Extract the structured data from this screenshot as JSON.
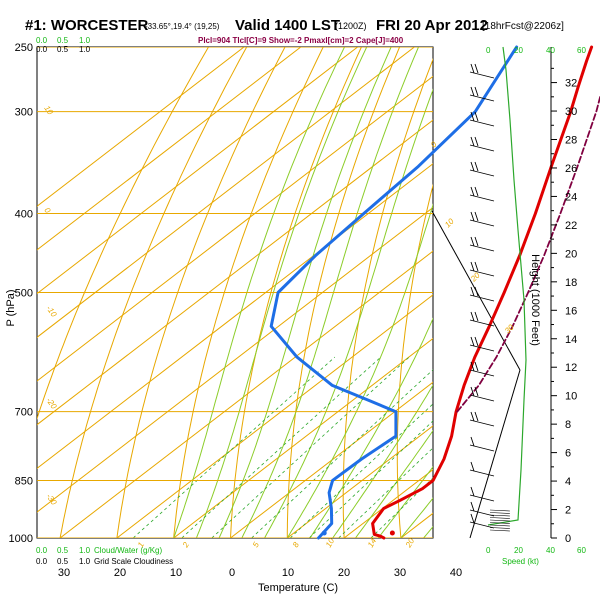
{
  "header": {
    "station": "#1: WORCESTER",
    "coords": "-33.65°,19.4° (19,25)",
    "valid": "Valid 1400 LST",
    "utc": "(1200Z)",
    "date": "FRI 20 Apr 2012",
    "forecast": "[18hrFcst@2206z]",
    "indices": "Plcl=904 Tlcl[C]=9 Show=-2 Pmaxl[cm]=2 Cape[J]=400"
  },
  "cloud_scales": {
    "top_green": [
      "0.0",
      "0.5",
      "1.0"
    ],
    "top_black": [
      "0.0",
      "0.5",
      "1.0"
    ],
    "bottom_green": [
      "0.0",
      "0.5",
      "1.0"
    ],
    "bottom_black": [
      "0.0",
      "0.5",
      "1.0"
    ],
    "bottom_green_label": "Cloud/Water (g/Kg)",
    "bottom_black_label": "Grid Scale Cloudiness"
  },
  "wind_speed_scale": {
    "top": [
      "0",
      "20",
      "40",
      "60"
    ],
    "bottom": [
      "0",
      "20",
      "40",
      "60"
    ],
    "label": "Speed (kt)"
  },
  "chart_data": {
    "type": "skew-t log-p sounding",
    "xlabel": "Temperature (C)",
    "ylabel": "P (hPa)",
    "y2label": "Height (1000 Feet)",
    "pressure_ticks": [
      250,
      300,
      400,
      500,
      700,
      850,
      1000
    ],
    "temp_ticks": [
      30,
      20,
      10,
      0,
      10,
      20,
      30,
      40
    ],
    "height_ticks": [
      0,
      2,
      4,
      6,
      8,
      10,
      12,
      14,
      16,
      18,
      20,
      22,
      24,
      26,
      28,
      30,
      32
    ],
    "height_range_kft": [
      0,
      34.5
    ],
    "mixing_ratio_labels": [
      "1",
      "2",
      "5",
      "8",
      "10",
      "14",
      "20"
    ],
    "isotherm_labels": [
      "10",
      "0",
      "-10",
      "-20",
      "-30"
    ],
    "adiabat_labels": [
      "0",
      "10",
      "20",
      "30"
    ],
    "series": [
      {
        "name": "temperature",
        "color": "#e00000",
        "points": [
          [
            1000,
            27
          ],
          [
            995,
            26
          ],
          [
            990,
            24.5
          ],
          [
            960,
            21.7
          ],
          [
            920,
            20.2
          ],
          [
            900,
            21.2
          ],
          [
            870,
            22.5
          ],
          [
            850,
            22.5
          ],
          [
            800,
            19.5
          ],
          [
            750,
            15.6
          ],
          [
            700,
            10.8
          ],
          [
            650,
            6.2
          ],
          [
            600,
            1.6
          ],
          [
            550,
            -2.9
          ],
          [
            500,
            -8.0
          ],
          [
            450,
            -13.8
          ],
          [
            400,
            -20.6
          ],
          [
            350,
            -28.6
          ],
          [
            300,
            -37.7
          ],
          [
            280,
            -42.0
          ],
          [
            260,
            -46.5
          ],
          [
            250,
            -48.8
          ]
        ]
      },
      {
        "name": "dewpoint",
        "color": "#1e6ee6",
        "points": [
          [
            1000,
            15.5
          ],
          [
            960,
            14.5
          ],
          [
            920,
            11.0
          ],
          [
            880,
            7.0
          ],
          [
            850,
            4.8
          ],
          [
            800,
            5.0
          ],
          [
            750,
            5.8
          ],
          [
            700,
            0.2
          ],
          [
            680,
            -6.5
          ],
          [
            650,
            -17.0
          ],
          [
            600,
            -29.7
          ],
          [
            550,
            -41.3
          ],
          [
            500,
            -47.8
          ],
          [
            450,
            -49.7
          ],
          [
            400,
            -50.8
          ],
          [
            350,
            -52.0
          ],
          [
            300,
            -54.5
          ],
          [
            250,
            -62.0
          ]
        ]
      },
      {
        "name": "parcel",
        "color": "#800040",
        "points": [
          [
            700,
            11
          ],
          [
            650,
            8.8
          ],
          [
            600,
            5.4
          ],
          [
            550,
            1.2
          ],
          [
            500,
            -3.8
          ],
          [
            450,
            -9.5
          ],
          [
            400,
            -16.2
          ],
          [
            350,
            -24.0
          ],
          [
            300,
            -33.2
          ],
          [
            285,
            -36.5
          ]
        ]
      }
    ],
    "surface_marks": [
      {
        "name": "temperature",
        "pressure": 1000,
        "temperature": 28.5
      },
      {
        "name": "dewpoint",
        "pressure": 1000,
        "temperature": 16.5
      }
    ]
  }
}
